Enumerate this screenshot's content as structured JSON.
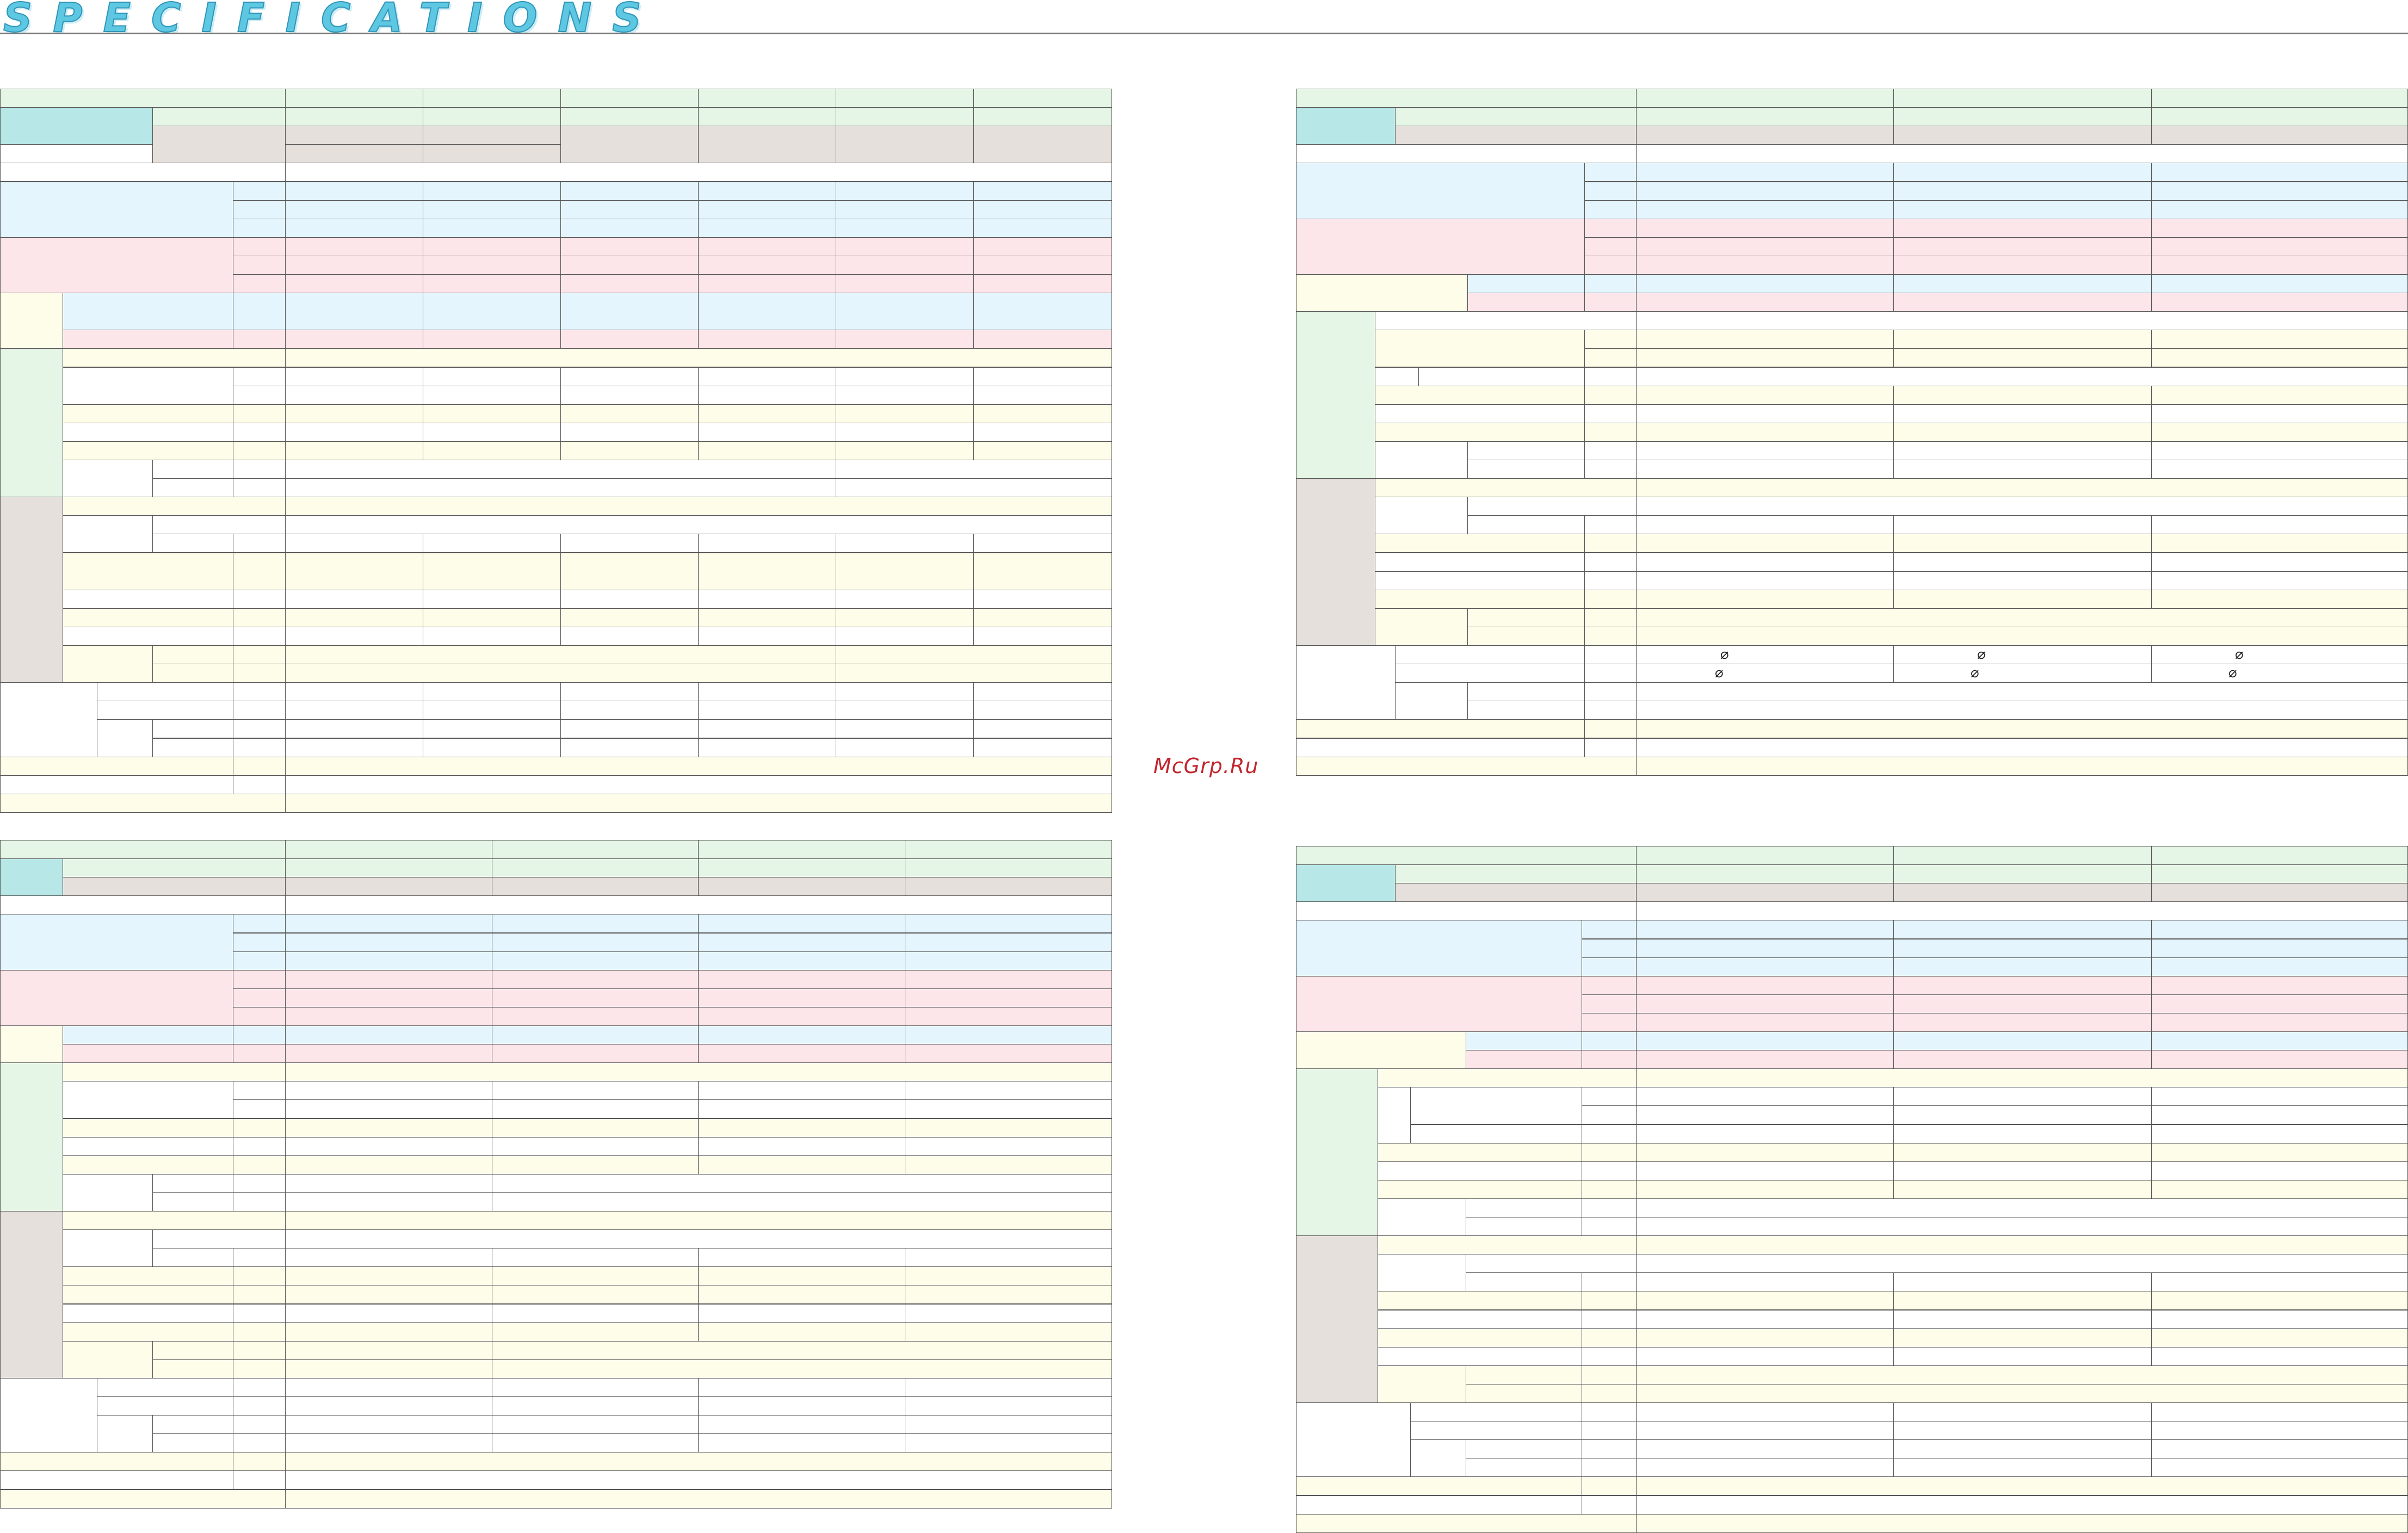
{
  "header": {
    "title": "SPECIFICATIONS"
  },
  "watermark": {
    "text": "McGrp.Ru"
  },
  "colors": {
    "green": "#e6f6e6",
    "teal": "#b7e7e6",
    "beige": "#e6e0dc",
    "blue": "#e5f5fd",
    "pink": "#fde6ea",
    "yellow": "#fefde9",
    "white": "#ffffff",
    "rule": "#777777",
    "border": "#565656",
    "title_fill": "#5ec7e2",
    "watermark": "#c2262e"
  },
  "glyphs": {
    "diameter": "⌀"
  }
}
